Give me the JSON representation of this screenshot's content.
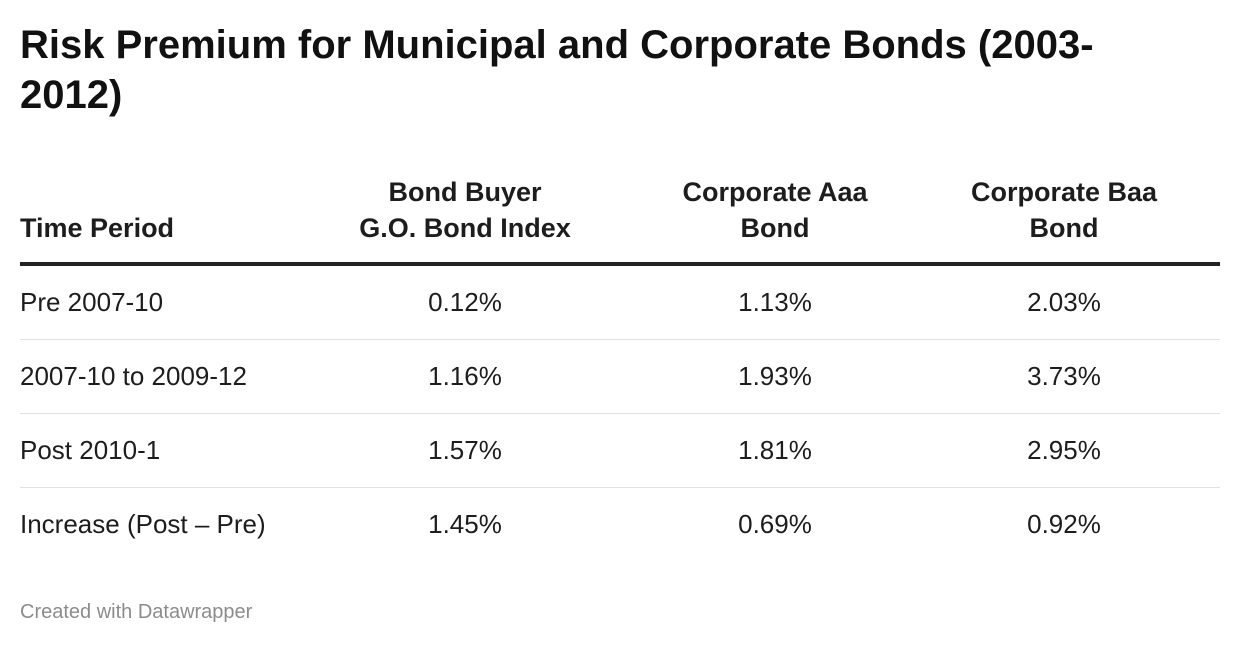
{
  "chart_data": {
    "type": "table",
    "title": "Risk Premium for Municipal and Corporate Bonds (2003-2012)",
    "columns": [
      {
        "line1": "Time Period",
        "line2": ""
      },
      {
        "line1": "Bond Buyer",
        "line2": "G.O. Bond Index"
      },
      {
        "line1": "Corporate Aaa",
        "line2": "Bond"
      },
      {
        "line1": "Corporate Baa",
        "line2": "Bond"
      }
    ],
    "rows": [
      [
        "Pre 2007-10",
        "0.12%",
        "1.13%",
        "2.03%"
      ],
      [
        "2007-10 to 2009-12",
        "1.16%",
        "1.93%",
        "3.73%"
      ],
      [
        "Post 2010-1",
        "1.57%",
        "1.81%",
        "2.95%"
      ],
      [
        "Increase (Post – Pre)",
        "1.45%",
        "0.69%",
        "0.92%"
      ]
    ]
  },
  "footer": {
    "credit": "Created with Datawrapper"
  }
}
